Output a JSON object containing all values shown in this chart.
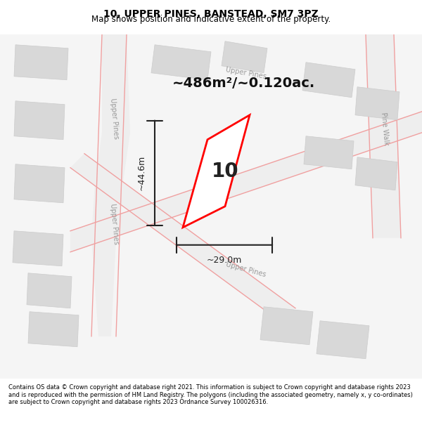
{
  "title": "10, UPPER PINES, BANSTEAD, SM7 3PZ",
  "subtitle": "Map shows position and indicative extent of the property.",
  "footer": "Contains OS data © Crown copyright and database right 2021. This information is subject to Crown copyright and database rights 2023 and is reproduced with the permission of HM Land Registry. The polygons (including the associated geometry, namely x, y co-ordinates) are subject to Crown copyright and database rights 2023 Ordnance Survey 100026316.",
  "area_label": "~486m²/~0.120ac.",
  "dim_height": "~44.6m",
  "dim_width": "~29.0m",
  "lot_number": "10",
  "bg_color": "#ffffff",
  "map_bg": "#f5f5f5",
  "road_color": "#f0c0c0",
  "building_color": "#d8d8d8",
  "road_stroke": "#e08080",
  "plot_color": "#ff0000",
  "dim_color": "#222222"
}
